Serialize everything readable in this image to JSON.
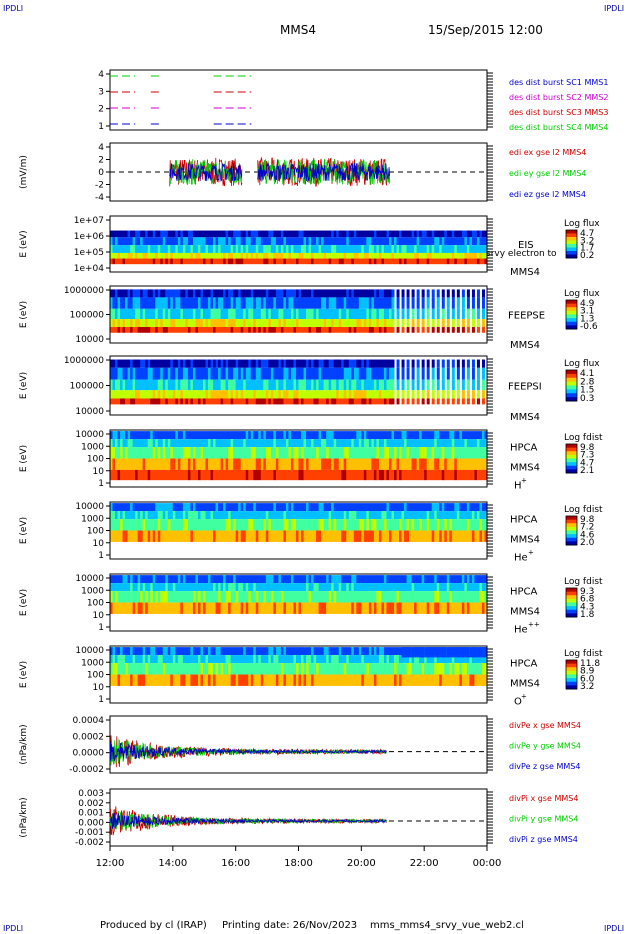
{
  "header": {
    "corner_label": "IPDLI",
    "spacecraft": "MMS4",
    "datetime": "15/Sep/2015 12:00"
  },
  "footer": {
    "produced_by": "Produced by cl (IRAP)",
    "printing_date": "Printing date: 26/Nov/2023",
    "file_name": "mms_mms4_srvy_vue_web2.cl"
  },
  "time_axis": {
    "ticks": [
      "12:00",
      "14:00",
      "16:00",
      "18:00",
      "20:00",
      "22:00",
      "00:00"
    ],
    "start_hour": 12,
    "end_hour": 24
  },
  "colors": {
    "mms1": "#0000cc",
    "mms2": "#cc00cc",
    "mms3": "#cc0000",
    "mms4": "#00cc00",
    "axis": "#000000",
    "colorbar": [
      "#0000a0",
      "#0040ff",
      "#00c0ff",
      "#40ffa0",
      "#c0ff00",
      "#ffc000",
      "#ff4000",
      "#b00000"
    ]
  },
  "chart_data": [
    {
      "type": "line",
      "panel": "burst-intervals",
      "yticks": [
        "4",
        "3",
        "2",
        "1"
      ],
      "series": [
        {
          "name": "des dist burst SC1 MMS1",
          "color": "#0000cc",
          "level": 1,
          "intervals": [
            [
              12.0,
              12.8
            ],
            [
              13.3,
              13.6
            ],
            [
              15.3,
              16.5
            ]
          ]
        },
        {
          "name": "des dist burst SC2 MMS2",
          "color": "#cc00cc",
          "level": 2,
          "intervals": [
            [
              12.0,
              12.8
            ],
            [
              13.3,
              13.6
            ],
            [
              15.3,
              16.5
            ]
          ]
        },
        {
          "name": "des dist burst SC3 MMS3",
          "color": "#cc0000",
          "level": 3,
          "intervals": [
            [
              12.0,
              12.8
            ],
            [
              13.3,
              13.6
            ],
            [
              15.3,
              16.5
            ]
          ]
        },
        {
          "name": "des dist burst SC4 MMS4",
          "color": "#00cc00",
          "level": 4,
          "intervals": [
            [
              12.0,
              12.8
            ],
            [
              13.3,
              13.6
            ],
            [
              15.3,
              16.5
            ]
          ]
        }
      ]
    },
    {
      "type": "line",
      "panel": "electric-field",
      "ylabel": "(mV/m)",
      "yticks": [
        "4",
        "2",
        "0",
        "-2",
        "-4"
      ],
      "ylim": [
        -4.5,
        4.5
      ],
      "coverage": [
        [
          13.9,
          16.2
        ],
        [
          16.7,
          20.9
        ]
      ],
      "series": [
        {
          "name": "edi ex gse l2 MMS4",
          "color": "#cc0000",
          "amplitude": 2.2
        },
        {
          "name": "edi ey gse l2 MMS4",
          "color": "#00cc00",
          "amplitude": 2.0
        },
        {
          "name": "edi ez gse l2 MMS4",
          "color": "#0000cc",
          "amplitude": 1.4
        }
      ]
    },
    {
      "type": "heatmap",
      "panel": "eis",
      "ylabel": "E (eV)",
      "yticks": [
        "1e+07",
        "1e+06",
        "1e+05",
        "1e+04"
      ],
      "instrument": "EIS",
      "species": "srvy electron to",
      "spacecraft": "MMS4",
      "colorbar_title": "Log flux",
      "colorbar_ticks": [
        "4.7",
        "3.2",
        "1.7",
        "0.2"
      ]
    },
    {
      "type": "heatmap",
      "panel": "feepse",
      "ylabel": "E (eV)",
      "yticks": [
        "1000000",
        "100000",
        "10000"
      ],
      "instrument": "FEEPSE",
      "spacecraft": "MMS4",
      "colorbar_title": "Log flux",
      "colorbar_ticks": [
        "4.9",
        "3.1",
        "1.3",
        "-0.6"
      ]
    },
    {
      "type": "heatmap",
      "panel": "feepsi",
      "ylabel": "E (eV)",
      "yticks": [
        "1000000",
        "100000",
        "10000"
      ],
      "instrument": "FEEPSI",
      "spacecraft": "MMS4",
      "colorbar_title": "Log flux",
      "colorbar_ticks": [
        "4.1",
        "2.8",
        "1.5",
        "0.3"
      ]
    },
    {
      "type": "heatmap",
      "panel": "hpca-h",
      "ylabel": "E (eV)",
      "yticks": [
        "10000",
        "1000",
        "100",
        "10",
        "1"
      ],
      "instrument": "HPCA",
      "spacecraft": "MMS4",
      "ion": "H",
      "ion_charge": "+",
      "colorbar_title": "Log fdist",
      "colorbar_ticks": [
        "9.8",
        "7.3",
        "4.7",
        "2.1"
      ]
    },
    {
      "type": "heatmap",
      "panel": "hpca-he",
      "ylabel": "E (eV)",
      "yticks": [
        "10000",
        "1000",
        "100",
        "10",
        "1"
      ],
      "instrument": "HPCA",
      "spacecraft": "MMS4",
      "ion": "He",
      "ion_charge": "+",
      "colorbar_title": "Log fdist",
      "colorbar_ticks": [
        "9.8",
        "7.2",
        "4.6",
        "2.0"
      ]
    },
    {
      "type": "heatmap",
      "panel": "hpca-he2",
      "ylabel": "E (eV)",
      "yticks": [
        "10000",
        "1000",
        "100",
        "10",
        "1"
      ],
      "instrument": "HPCA",
      "spacecraft": "MMS4",
      "ion": "He",
      "ion_charge": "++",
      "colorbar_title": "Log fdist",
      "colorbar_ticks": [
        "9.3",
        "6.8",
        "4.3",
        "1.8"
      ]
    },
    {
      "type": "heatmap",
      "panel": "hpca-o",
      "ylabel": "E (eV)",
      "yticks": [
        "10000",
        "1000",
        "100",
        "10",
        "1"
      ],
      "instrument": "HPCA",
      "spacecraft": "MMS4",
      "ion": "O",
      "ion_charge": "+",
      "colorbar_title": "Log fdist",
      "colorbar_ticks": [
        "11.8",
        "8.9",
        "6.0",
        "3.2"
      ]
    },
    {
      "type": "line",
      "panel": "div-pe",
      "ylabel": "(nPa/km)",
      "yticks": [
        "0.0004",
        "0.0002",
        "0.0000",
        "-0.0002"
      ],
      "ylim": [
        -0.0003,
        0.0005
      ],
      "coverage": [
        [
          12.0,
          20.8
        ]
      ],
      "series": [
        {
          "name": "divPe x gse MMS4",
          "color": "#cc0000",
          "amplitude": 0.00025
        },
        {
          "name": "divPe y gse MMS4",
          "color": "#00cc00",
          "amplitude": 0.0002
        },
        {
          "name": "divPe z gse MMS4",
          "color": "#0000cc",
          "amplitude": 0.00015
        }
      ]
    },
    {
      "type": "line",
      "panel": "div-pi",
      "ylabel": "(nPa/km)",
      "yticks": [
        "0.003",
        "0.002",
        "0.001",
        "0.000",
        "-0.001",
        "-0.002"
      ],
      "ylim": [
        -0.0025,
        0.0032
      ],
      "coverage": [
        [
          12.0,
          20.8
        ]
      ],
      "series": [
        {
          "name": "divPi x gse MMS4",
          "color": "#cc0000",
          "amplitude": 0.0016
        },
        {
          "name": "divPi y gse MMS4",
          "color": "#00cc00",
          "amplitude": 0.0013
        },
        {
          "name": "divPi z gse MMS4",
          "color": "#0000cc",
          "amplitude": 0.0009
        }
      ]
    }
  ]
}
